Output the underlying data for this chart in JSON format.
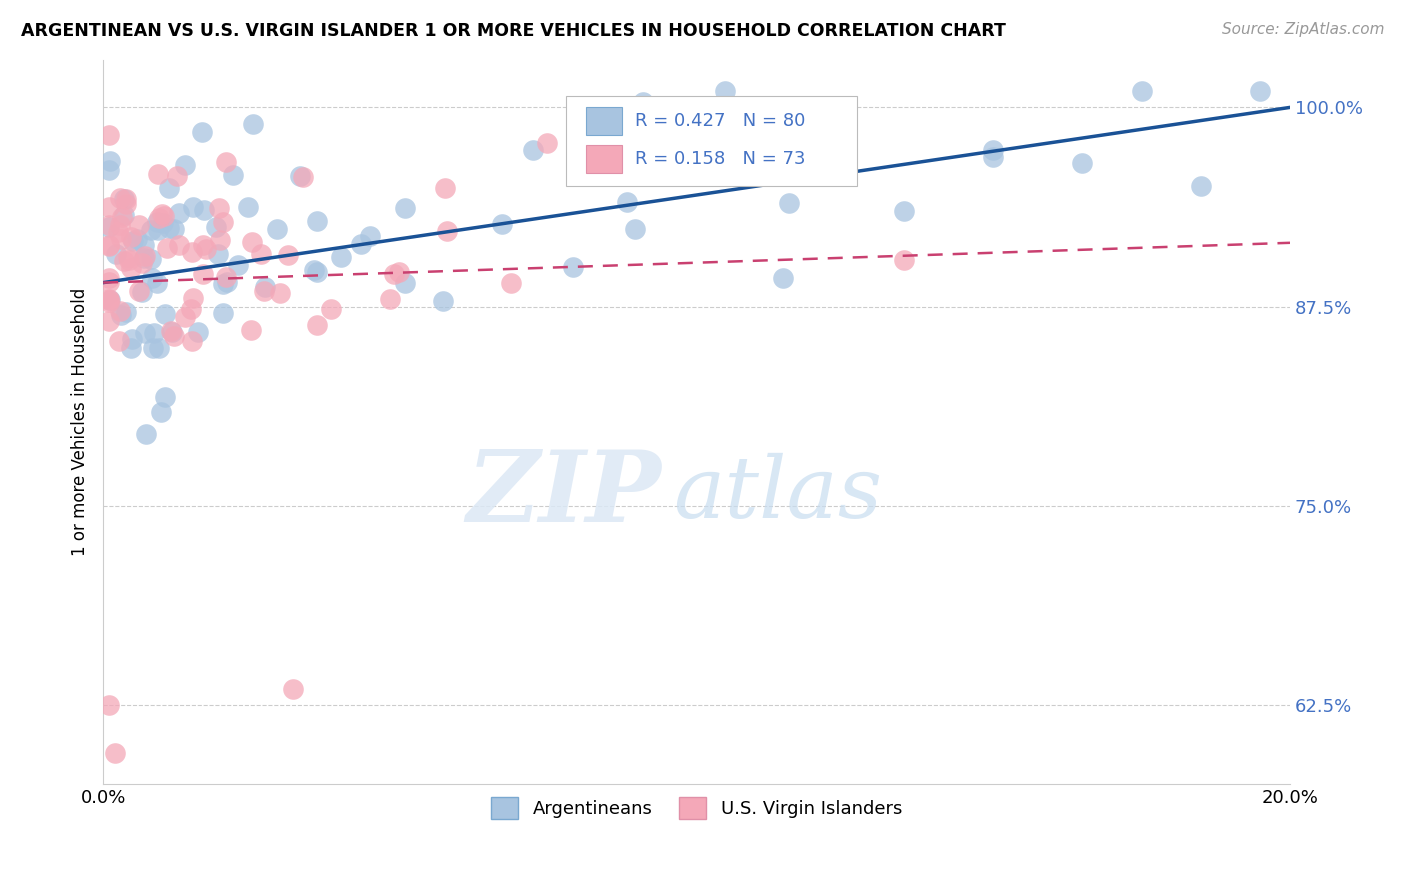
{
  "title": "ARGENTINEAN VS U.S. VIRGIN ISLANDER 1 OR MORE VEHICLES IN HOUSEHOLD CORRELATION CHART",
  "source": "Source: ZipAtlas.com",
  "ylabel": "1 or more Vehicles in Household",
  "xlim": [
    0.0,
    0.2
  ],
  "ylim": [
    0.575,
    1.03
  ],
  "xticks": [
    0.0,
    0.2
  ],
  "xticklabels": [
    "0.0%",
    "20.0%"
  ],
  "yticks": [
    0.625,
    0.75,
    0.875,
    1.0
  ],
  "yticklabels": [
    "62.5%",
    "75.0%",
    "87.5%",
    "100.0%"
  ],
  "blue_R": 0.427,
  "blue_N": 80,
  "pink_R": 0.158,
  "pink_N": 73,
  "blue_color": "#a8c4e0",
  "pink_color": "#f4a8b8",
  "blue_line_color": "#1a5296",
  "pink_line_color": "#c94070",
  "legend_blue_label": "Argentineans",
  "legend_pink_label": "U.S. Virgin Islanders",
  "watermark_zip": "ZIP",
  "watermark_atlas": "atlas",
  "tick_color": "#4472c4",
  "grid_color": "#cccccc"
}
